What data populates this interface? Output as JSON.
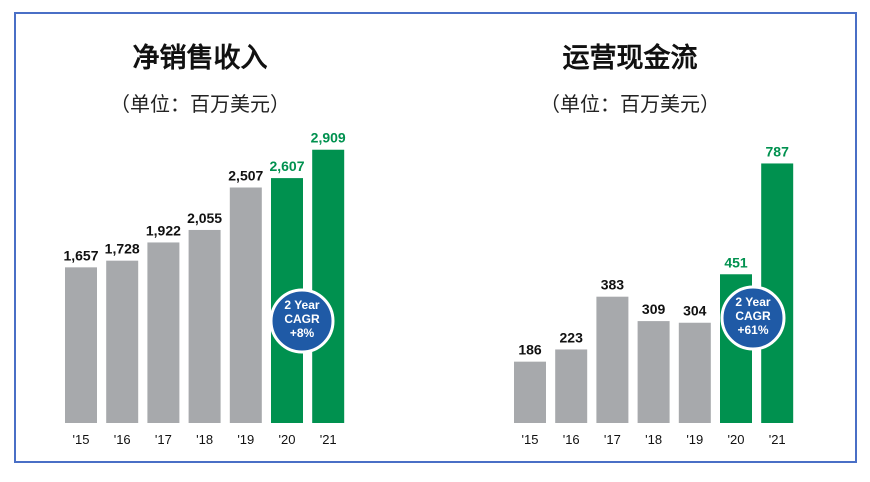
{
  "colors": {
    "gray_bar": "#a7a9ac",
    "green_bar": "#00914f",
    "badge": "#1f5aa6",
    "frame": "#4a6fc6"
  },
  "chart_data": [
    {
      "type": "bar",
      "title": "净销售收入",
      "subtitle": "（单位：百万美元）",
      "categories": [
        "'15",
        "'16",
        "'17",
        "'18",
        "'19",
        "'20",
        "'21"
      ],
      "values": [
        1657,
        1728,
        1922,
        2055,
        2507,
        2607,
        2909
      ],
      "value_labels": [
        "1,657",
        "1,728",
        "1,922",
        "2,055",
        "2,507",
        "2,607",
        "2,909"
      ],
      "highlight": [
        false,
        false,
        false,
        false,
        false,
        true,
        true
      ],
      "ylim": [
        0,
        3300
      ],
      "badge": {
        "line1": "2 Year",
        "line2": "CAGR",
        "line3": "+8%"
      }
    },
    {
      "type": "bar",
      "title": "运营现金流",
      "subtitle": "（单位：百万美元）",
      "categories": [
        "'15",
        "'16",
        "'17",
        "'18",
        "'19",
        "'20",
        "'21"
      ],
      "values": [
        186,
        223,
        383,
        309,
        304,
        451,
        787
      ],
      "value_labels": [
        "186",
        "223",
        "383",
        "309",
        "304",
        "451",
        "787"
      ],
      "highlight": [
        false,
        false,
        false,
        false,
        false,
        true,
        true
      ],
      "ylim": [
        0,
        940
      ],
      "badge": {
        "line1": "2 Year",
        "line2": "CAGR",
        "line3": "+61%"
      }
    }
  ]
}
